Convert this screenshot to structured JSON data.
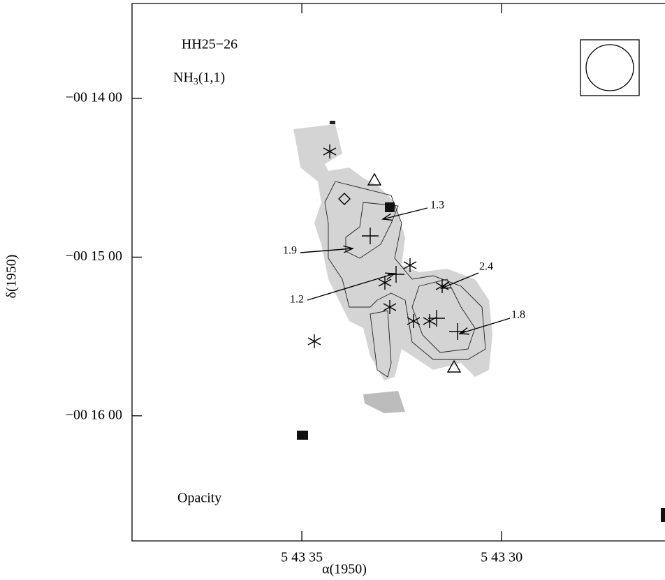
{
  "chart_data": {
    "type": "image-map",
    "title": "HH25−26",
    "line_label": {
      "text": "NH",
      "subscript": "3",
      "suffix": "(1,1)"
    },
    "quantity": "Opacity",
    "xlabel": "α(1950)",
    "ylabel": "δ(1950)",
    "xlim": [
      39.25,
      25.91
    ],
    "ylim": [
      -1007.3,
      -804.1
    ],
    "xticks": [
      {
        "value": 35,
        "label": "5 43 35"
      },
      {
        "value": 30,
        "label": "5 43 30"
      }
    ],
    "yticks": [
      {
        "value": -840,
        "label": "−00 14 00"
      },
      {
        "value": -900,
        "label": "−00 15 00"
      },
      {
        "value": -960,
        "label": "−00 16 00"
      }
    ],
    "annotations": [
      "1.3",
      "1.9",
      "1.2",
      "2.4",
      "1.8"
    ]
  }
}
